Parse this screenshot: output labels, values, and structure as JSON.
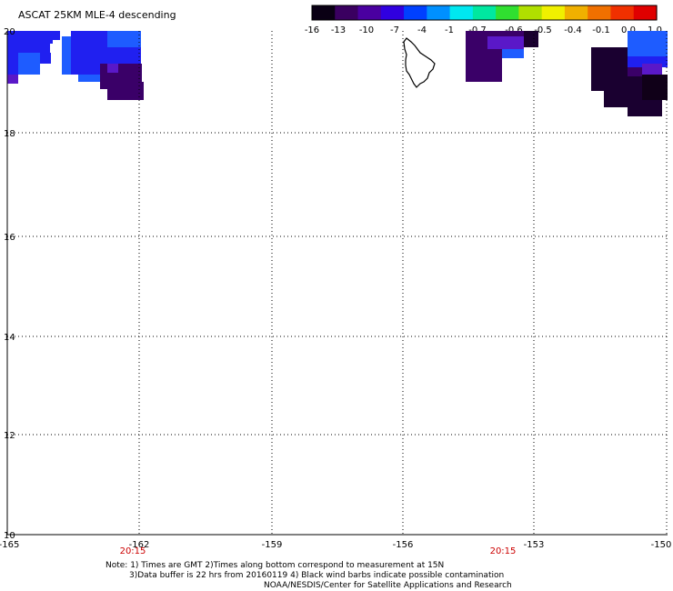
{
  "title": "ASCAT 25KM MLE-4 descending",
  "colorbar": {
    "labels": [
      "-16",
      "-13",
      "-10",
      "-7",
      "-4",
      "-1",
      "-0.7",
      "-0.6",
      "-0.5",
      "-0.4",
      "-0.1",
      "0.0",
      "1.0"
    ],
    "colors": [
      "#0a0014",
      "#3a0060",
      "#4a00a0",
      "#3000e0",
      "#0040ff",
      "#0090ff",
      "#00e8f0",
      "#00e8a0",
      "#30e030",
      "#b0e000",
      "#f0f000",
      "#f0b000",
      "#f07000",
      "#f03000",
      "#e00000"
    ]
  },
  "map": {
    "lon_range": [
      -165,
      -150
    ],
    "lat_range": [
      10,
      20
    ],
    "x_tick_labels": [
      "-165",
      "-162",
      "-159",
      "-156",
      "-153",
      "-150"
    ],
    "y_tick_labels": [
      "10",
      "12",
      "14",
      "16",
      "18",
      "20"
    ],
    "time_labels": [
      {
        "lon": -162,
        "text": "20:15"
      },
      {
        "lon": -153,
        "text": "20:15"
      }
    ]
  },
  "notes": [
    "Note: 1) Times are GMT 2)Times along bottom correspond to measurement at 15N",
    "3)Data buffer is 22 hrs from 20160119 4) Black wind barbs indicate possible contamination",
    "NOAA/NESDIS/Center for Satellite Applications and Research"
  ],
  "colors": {
    "c_dark": "#1a0030",
    "c_purple": "#3a0068",
    "c_violet": "#5a18c8",
    "c_blue": "#2020f0",
    "c_lightblue": "#1e5cff"
  }
}
